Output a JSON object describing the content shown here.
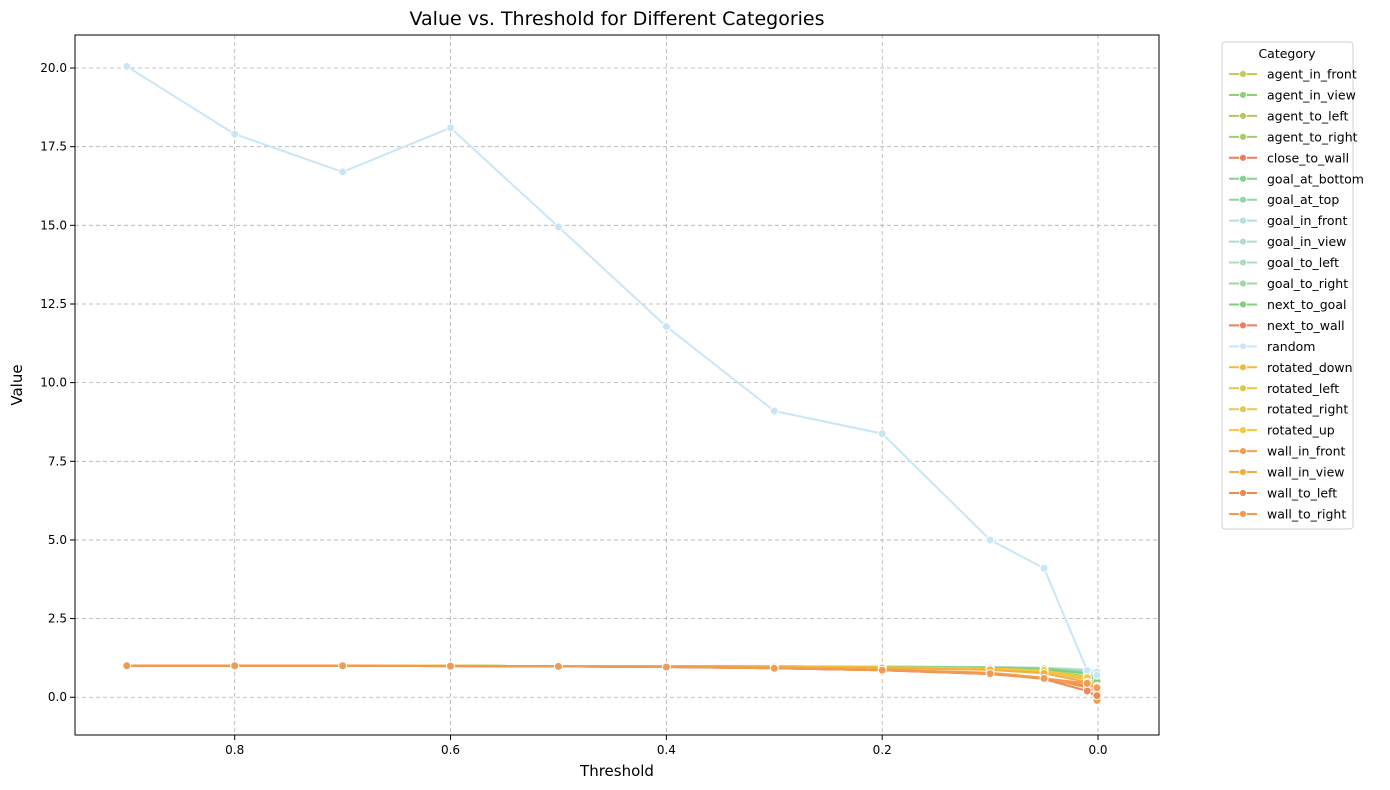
{
  "chart_data": {
    "type": "line",
    "title": "Value vs. Threshold for Different Categories",
    "xlabel": "Threshold",
    "ylabel": "Value",
    "xlim": [
      0.948,
      -0.0565
    ],
    "ylim": [
      -1.2,
      21.05
    ],
    "x_inverted": true,
    "x_ticks": [
      0.8,
      0.6,
      0.4,
      0.2,
      0.0
    ],
    "x_tick_labels": [
      "0.8",
      "0.6",
      "0.4",
      "0.2",
      "0.0"
    ],
    "y_ticks": [
      0.0,
      2.5,
      5.0,
      7.5,
      10.0,
      12.5,
      15.0,
      17.5,
      20.0
    ],
    "y_tick_labels": [
      "0.0",
      "2.5",
      "5.0",
      "7.5",
      "10.0",
      "12.5",
      "15.0",
      "17.5",
      "20.0"
    ],
    "grid": true,
    "legend_title": "Category",
    "legend_position": "outside-upper-right",
    "x": [
      0.9,
      0.8,
      0.7,
      0.6,
      0.5,
      0.4,
      0.3,
      0.2,
      0.1,
      0.05,
      0.01,
      0.001
    ],
    "series": [
      {
        "name": "agent_in_front",
        "color": "#c2c95a",
        "values": [
          1.0,
          1.0,
          1.0,
          1.0,
          0.99,
          0.98,
          0.96,
          0.94,
          0.9,
          0.82,
          0.6,
          0.35
        ]
      },
      {
        "name": "agent_in_view",
        "color": "#8fd174",
        "values": [
          1.0,
          1.0,
          1.0,
          1.0,
          0.99,
          0.99,
          0.98,
          0.97,
          0.95,
          0.9,
          0.75,
          0.55
        ]
      },
      {
        "name": "agent_to_left",
        "color": "#b3c862",
        "values": [
          1.0,
          1.0,
          1.0,
          1.0,
          0.99,
          0.98,
          0.97,
          0.95,
          0.92,
          0.86,
          0.65,
          0.4
        ]
      },
      {
        "name": "agent_to_right",
        "color": "#a4cc6a",
        "values": [
          1.0,
          1.0,
          1.0,
          1.0,
          0.99,
          0.98,
          0.97,
          0.95,
          0.92,
          0.86,
          0.66,
          0.42
        ]
      },
      {
        "name": "close_to_wall",
        "color": "#ee7a5b",
        "values": [
          1.0,
          1.0,
          1.0,
          0.99,
          0.98,
          0.96,
          0.92,
          0.86,
          0.74,
          0.6,
          0.35,
          0.15
        ]
      },
      {
        "name": "goal_at_bottom",
        "color": "#86d38e",
        "values": [
          1.0,
          1.0,
          1.0,
          1.0,
          0.99,
          0.99,
          0.98,
          0.97,
          0.95,
          0.92,
          0.78,
          0.55
        ]
      },
      {
        "name": "goal_at_top",
        "color": "#92d6a6",
        "values": [
          1.0,
          1.0,
          1.0,
          1.0,
          0.99,
          0.99,
          0.98,
          0.97,
          0.95,
          0.92,
          0.8,
          0.58
        ]
      },
      {
        "name": "goal_in_front",
        "color": "#b2dfe3",
        "values": [
          1.0,
          1.0,
          1.0,
          1.0,
          0.99,
          0.99,
          0.98,
          0.97,
          0.96,
          0.94,
          0.88,
          0.82
        ]
      },
      {
        "name": "goal_in_view",
        "color": "#afdcd3",
        "values": [
          1.0,
          1.0,
          1.0,
          1.0,
          0.99,
          0.99,
          0.98,
          0.97,
          0.96,
          0.93,
          0.86,
          0.78
        ]
      },
      {
        "name": "goal_to_left",
        "color": "#a9dcc0",
        "values": [
          1.0,
          1.0,
          1.0,
          1.0,
          0.99,
          0.99,
          0.98,
          0.97,
          0.95,
          0.92,
          0.82,
          0.65
        ]
      },
      {
        "name": "goal_to_right",
        "color": "#a1d7a8",
        "values": [
          1.0,
          1.0,
          1.0,
          1.0,
          0.99,
          0.99,
          0.98,
          0.97,
          0.95,
          0.92,
          0.8,
          0.6
        ]
      },
      {
        "name": "next_to_goal",
        "color": "#7fcf7a",
        "values": [
          1.0,
          1.0,
          1.0,
          1.0,
          0.99,
          0.99,
          0.98,
          0.96,
          0.94,
          0.9,
          0.76,
          0.5
        ]
      },
      {
        "name": "next_to_wall",
        "color": "#ef7d5d",
        "values": [
          1.0,
          1.0,
          1.0,
          0.99,
          0.98,
          0.96,
          0.92,
          0.86,
          0.74,
          0.6,
          0.34,
          0.14
        ]
      },
      {
        "name": "random",
        "color": "#c9e6f7",
        "values": [
          20.05,
          17.9,
          16.7,
          18.1,
          14.95,
          11.78,
          9.1,
          8.38,
          5.0,
          4.1,
          0.85,
          0.7
        ]
      },
      {
        "name": "rotated_down",
        "color": "#f3b93c",
        "values": [
          1.0,
          1.0,
          1.0,
          1.0,
          0.99,
          0.98,
          0.97,
          0.95,
          0.9,
          0.82,
          0.56,
          0.3
        ]
      },
      {
        "name": "rotated_left",
        "color": "#e1c64a",
        "values": [
          1.0,
          1.0,
          1.0,
          1.0,
          0.99,
          0.98,
          0.97,
          0.95,
          0.91,
          0.84,
          0.6,
          0.32
        ]
      },
      {
        "name": "rotated_right",
        "color": "#e3ca50",
        "values": [
          1.0,
          1.0,
          1.0,
          1.0,
          0.99,
          0.98,
          0.97,
          0.95,
          0.91,
          0.84,
          0.6,
          0.33
        ]
      },
      {
        "name": "rotated_up",
        "color": "#f6c73d",
        "values": [
          1.0,
          1.0,
          1.0,
          1.0,
          0.99,
          0.98,
          0.97,
          0.95,
          0.91,
          0.85,
          0.62,
          0.35
        ]
      },
      {
        "name": "wall_in_front",
        "color": "#f0a04a",
        "values": [
          1.0,
          1.0,
          1.0,
          0.99,
          0.98,
          0.96,
          0.93,
          0.88,
          0.78,
          0.62,
          0.3,
          -0.1
        ]
      },
      {
        "name": "wall_in_view",
        "color": "#f4ad42",
        "values": [
          1.0,
          1.0,
          1.0,
          1.0,
          0.99,
          0.98,
          0.96,
          0.93,
          0.87,
          0.76,
          0.48,
          0.2
        ]
      },
      {
        "name": "wall_to_left",
        "color": "#ec8a54",
        "values": [
          1.0,
          1.0,
          1.0,
          0.99,
          0.98,
          0.96,
          0.92,
          0.86,
          0.75,
          0.58,
          0.2,
          0.05
        ]
      },
      {
        "name": "wall_to_right",
        "color": "#f09a52",
        "values": [
          1.0,
          1.0,
          1.0,
          0.99,
          0.98,
          0.96,
          0.92,
          0.86,
          0.75,
          0.6,
          0.44,
          0.3
        ]
      }
    ]
  }
}
